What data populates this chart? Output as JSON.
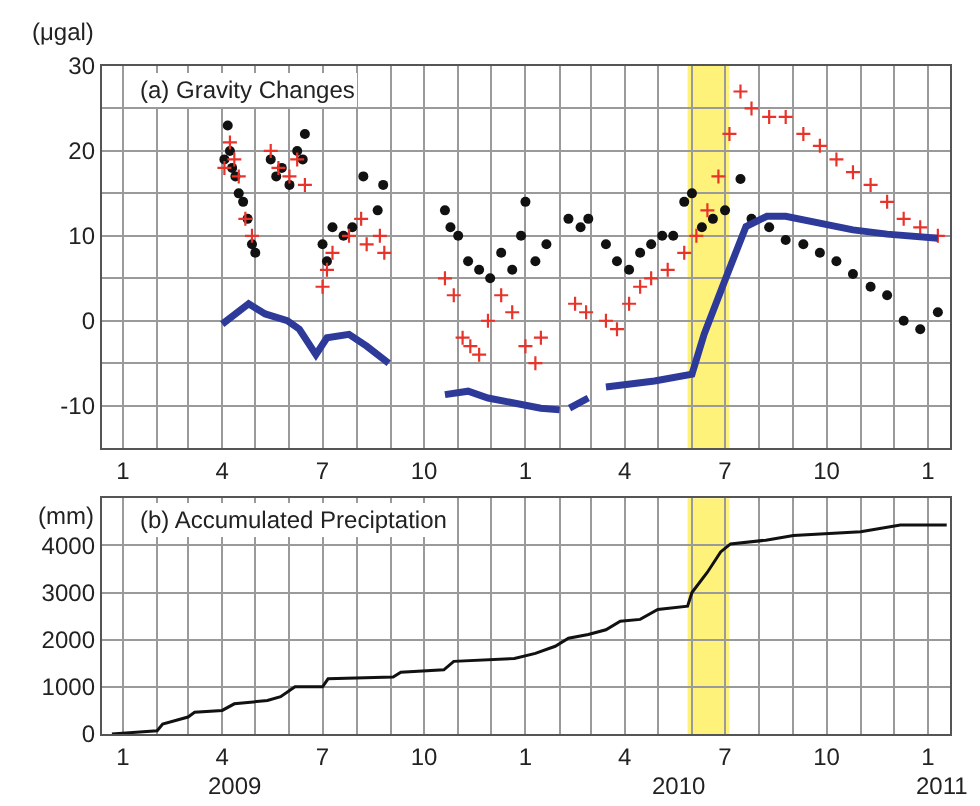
{
  "chart_data": [
    {
      "type": "scatter",
      "title": "(a) Gravity Changes",
      "ylabel": "(μgal)",
      "grid": true,
      "xlim": [
        "2008-12-13",
        "2011-01-21"
      ],
      "xticks": [
        {
          "value": "2009-01-01",
          "label": "1"
        },
        {
          "value": "2009-02-01",
          "label": null
        },
        {
          "value": "2009-03-01",
          "label": null
        },
        {
          "value": "2009-04-01",
          "label": "4"
        },
        {
          "value": "2009-05-01",
          "label": null
        },
        {
          "value": "2009-06-01",
          "label": null
        },
        {
          "value": "2009-07-01",
          "label": "7"
        },
        {
          "value": "2009-08-01",
          "label": null
        },
        {
          "value": "2009-09-01",
          "label": null
        },
        {
          "value": "2009-10-01",
          "label": "10"
        },
        {
          "value": "2009-11-01",
          "label": null
        },
        {
          "value": "2009-12-01",
          "label": null
        },
        {
          "value": "2010-01-01",
          "label": "1"
        },
        {
          "value": "2010-02-01",
          "label": null
        },
        {
          "value": "2010-03-01",
          "label": null
        },
        {
          "value": "2010-04-01",
          "label": "4"
        },
        {
          "value": "2010-05-01",
          "label": null
        },
        {
          "value": "2010-06-01",
          "label": null
        },
        {
          "value": "2010-07-01",
          "label": "7"
        },
        {
          "value": "2010-08-01",
          "label": null
        },
        {
          "value": "2010-09-01",
          "label": null
        },
        {
          "value": "2010-10-01",
          "label": "10"
        },
        {
          "value": "2010-11-01",
          "label": null
        },
        {
          "value": "2010-12-01",
          "label": null
        },
        {
          "value": "2011-01-01",
          "label": "1"
        }
      ],
      "ylim": [
        -15,
        30
      ],
      "yticks": [
        -10,
        {
          "value": -5,
          "label": null
        },
        0,
        {
          "value": 5,
          "label": null
        },
        10,
        {
          "value": 15,
          "label": null
        },
        20,
        {
          "value": 25,
          "label": null
        },
        30
      ],
      "bands": [
        {
          "axis": "x",
          "from": "2010-05-28",
          "to": "2010-07-05",
          "color": "#fff27a"
        }
      ],
      "series": [
        {
          "marker": "circle",
          "color": "#111111",
          "x": [
            "2009-04-03",
            "2009-04-06",
            "2009-04-08",
            "2009-04-10",
            "2009-04-13",
            "2009-04-16",
            "2009-04-20",
            "2009-04-24",
            "2009-04-28",
            "2009-05-01",
            "2009-05-15",
            "2009-05-20",
            "2009-05-25",
            "2009-06-01",
            "2009-06-08",
            "2009-06-13",
            "2009-06-15",
            "2009-07-01",
            "2009-07-05",
            "2009-07-10",
            "2009-07-20",
            "2009-07-28",
            "2009-08-07",
            "2009-08-20",
            "2009-08-25",
            "2009-10-20",
            "2009-10-25",
            "2009-11-01",
            "2009-11-10",
            "2009-11-20",
            "2009-11-30",
            "2009-12-10",
            "2009-12-20",
            "2009-12-28",
            "2010-01-01",
            "2010-01-10",
            "2010-01-20",
            "2010-02-09",
            "2010-02-20",
            "2010-02-27",
            "2010-03-15",
            "2010-03-25",
            "2010-04-05",
            "2010-04-15",
            "2010-04-25",
            "2010-05-05",
            "2010-05-15",
            "2010-05-25",
            "2010-06-01",
            "2010-06-10",
            "2010-06-20",
            "2010-07-01",
            "2010-07-15",
            "2010-07-25",
            "2010-08-10",
            "2010-08-25",
            "2010-09-10",
            "2010-09-25",
            "2010-10-10",
            "2010-10-25",
            "2010-11-10",
            "2010-11-25",
            "2010-12-10",
            "2010-12-25",
            "2011-01-10"
          ],
          "values": [
            19,
            23,
            20,
            18,
            17,
            15,
            14,
            12,
            9,
            8,
            19,
            17,
            18,
            16,
            20,
            19,
            22,
            9,
            7,
            11,
            10,
            11,
            17,
            13,
            16,
            13,
            11,
            10,
            7,
            6,
            5,
            8,
            6,
            10,
            14,
            7,
            9,
            12,
            11,
            12,
            9,
            7,
            6,
            8,
            9,
            10,
            10,
            14,
            15,
            11,
            12,
            13,
            16.7,
            12,
            11,
            9.5,
            9,
            8,
            7,
            5.5,
            4,
            3,
            0,
            -1,
            1
          ]
        },
        {
          "marker": "cross",
          "color": "#e8332a",
          "x": [
            "2009-04-03",
            "2009-04-08",
            "2009-04-12",
            "2009-04-16",
            "2009-04-22",
            "2009-04-28",
            "2009-05-15",
            "2009-05-22",
            "2009-06-01",
            "2009-06-08",
            "2009-06-15",
            "2009-07-01",
            "2009-07-05",
            "2009-07-10",
            "2009-07-25",
            "2009-08-05",
            "2009-08-10",
            "2009-08-22",
            "2009-08-26",
            "2009-10-20",
            "2009-10-28",
            "2009-11-05",
            "2009-11-12",
            "2009-11-20",
            "2009-11-28",
            "2009-12-10",
            "2009-12-20",
            "2010-01-01",
            "2010-01-10",
            "2010-01-15",
            "2010-02-15",
            "2010-02-25",
            "2010-03-15",
            "2010-03-25",
            "2010-04-05",
            "2010-04-15",
            "2010-04-25",
            "2010-05-10",
            "2010-05-25",
            "2010-06-05",
            "2010-06-15",
            "2010-06-25",
            "2010-07-05",
            "2010-07-15",
            "2010-07-25",
            "2010-08-10",
            "2010-08-25",
            "2010-09-10",
            "2010-09-25",
            "2010-10-10",
            "2010-10-25",
            "2010-11-10",
            "2010-11-25",
            "2010-12-10",
            "2010-12-25",
            "2011-01-10"
          ],
          "values": [
            18,
            21,
            19,
            17,
            12,
            10,
            20,
            18,
            17,
            19,
            16,
            4,
            6,
            8,
            10,
            12,
            9,
            10,
            8,
            5,
            3,
            -2,
            -3,
            -4,
            0,
            3,
            1,
            -3,
            -5,
            -2,
            2,
            1,
            0,
            -1,
            2,
            4,
            5,
            6,
            8,
            10,
            13,
            17,
            22,
            27,
            25,
            24,
            24,
            22,
            20.6,
            19,
            17.5,
            16,
            14,
            12,
            11,
            10
          ]
        },
        {
          "type": "line",
          "marker": "none",
          "color": "#2e3a9a",
          "x": [
            "2009-04-01",
            "2009-04-25",
            "2009-05-10",
            "2009-05-30",
            "2009-06-10",
            "2009-06-25",
            "2009-07-05",
            "2009-07-25",
            "2009-08-10",
            "2009-08-30",
            "2009-09-30",
            "2009-10-20",
            "2009-11-10",
            "2009-11-28",
            "2010-01-15",
            "2010-02-01",
            "2010-02-05",
            "2010-02-10",
            "2010-02-27",
            "2010-03-05",
            "2010-03-15",
            "2010-04-28",
            "2010-06-01",
            "2010-06-12",
            "2010-07-01",
            "2010-07-20",
            "2010-08-08",
            "2010-08-25",
            "2010-10-25",
            "2010-11-25",
            "2011-01-10"
          ],
          "values": [
            -0.4,
            2,
            0.8,
            0,
            -1,
            -4,
            -2,
            -1.6,
            -3,
            -5,
            null,
            -8.7,
            -8.3,
            -9.1,
            -10.3,
            -10.5,
            null,
            -10.3,
            -9.1,
            null,
            -7.8,
            -7.1,
            -6.3,
            -1.6,
            4.8,
            11.1,
            12.3,
            12.3,
            10.7,
            10.2,
            9.7
          ]
        }
      ]
    },
    {
      "type": "line",
      "title": "(b) Accumulated Preciptation",
      "ylabel": "(mm)",
      "grid": true,
      "annotations": [
        "2009",
        "2010",
        "2011"
      ],
      "xlim": [
        "2008-12-13",
        "2011-01-21"
      ],
      "xticks": [
        {
          "value": "2009-01-01",
          "label": "1"
        },
        {
          "value": "2009-02-01",
          "label": null
        },
        {
          "value": "2009-03-01",
          "label": null
        },
        {
          "value": "2009-04-01",
          "label": "4"
        },
        {
          "value": "2009-05-01",
          "label": null
        },
        {
          "value": "2009-06-01",
          "label": null
        },
        {
          "value": "2009-07-01",
          "label": "7"
        },
        {
          "value": "2009-08-01",
          "label": null
        },
        {
          "value": "2009-09-01",
          "label": null
        },
        {
          "value": "2009-10-01",
          "label": "10"
        },
        {
          "value": "2009-11-01",
          "label": null
        },
        {
          "value": "2009-12-01",
          "label": null
        },
        {
          "value": "2010-01-01",
          "label": "1"
        },
        {
          "value": "2010-02-01",
          "label": null
        },
        {
          "value": "2010-03-01",
          "label": null
        },
        {
          "value": "2010-04-01",
          "label": "4"
        },
        {
          "value": "2010-05-01",
          "label": null
        },
        {
          "value": "2010-06-01",
          "label": null
        },
        {
          "value": "2010-07-01",
          "label": "7"
        },
        {
          "value": "2010-08-01",
          "label": null
        },
        {
          "value": "2010-09-01",
          "label": null
        },
        {
          "value": "2010-10-01",
          "label": "10"
        },
        {
          "value": "2010-11-01",
          "label": null
        },
        {
          "value": "2010-12-01",
          "label": null
        },
        {
          "value": "2011-01-01",
          "label": "1"
        }
      ],
      "ylim": [
        0,
        5000
      ],
      "yticks": [
        0,
        1000,
        2000,
        3000,
        4000
      ],
      "bands": [
        {
          "axis": "x",
          "from": "2010-05-28",
          "to": "2010-07-05",
          "color": "#fff27a"
        }
      ],
      "series": [
        {
          "color": "#111111",
          "x": [
            "2008-12-22",
            "2009-02-01",
            "2009-02-06",
            "2009-03-01",
            "2009-03-07",
            "2009-04-01",
            "2009-04-12",
            "2009-05-12",
            "2009-05-24",
            "2009-06-06",
            "2009-07-01",
            "2009-07-06",
            "2009-09-03",
            "2009-09-10",
            "2009-10-19",
            "2009-10-28",
            "2009-12-22",
            "2010-01-10",
            "2010-01-28",
            "2010-02-09",
            "2010-02-27",
            "2010-03-15",
            "2010-03-28",
            "2010-04-15",
            "2010-05-01",
            "2010-05-28",
            "2010-06-01",
            "2010-06-15",
            "2010-06-27",
            "2010-07-06",
            "2010-08-07",
            "2010-09-01",
            "2010-11-01",
            "2010-12-07",
            "2011-01-18"
          ],
          "values": [
            0,
            70,
            210,
            360,
            460,
            500,
            640,
            710,
            790,
            1000,
            1000,
            1170,
            1210,
            1310,
            1360,
            1540,
            1600,
            1710,
            1860,
            2030,
            2110,
            2210,
            2390,
            2430,
            2640,
            2710,
            3000,
            3430,
            3860,
            4030,
            4110,
            4210,
            4290,
            4430,
            4430
          ]
        }
      ]
    }
  ]
}
